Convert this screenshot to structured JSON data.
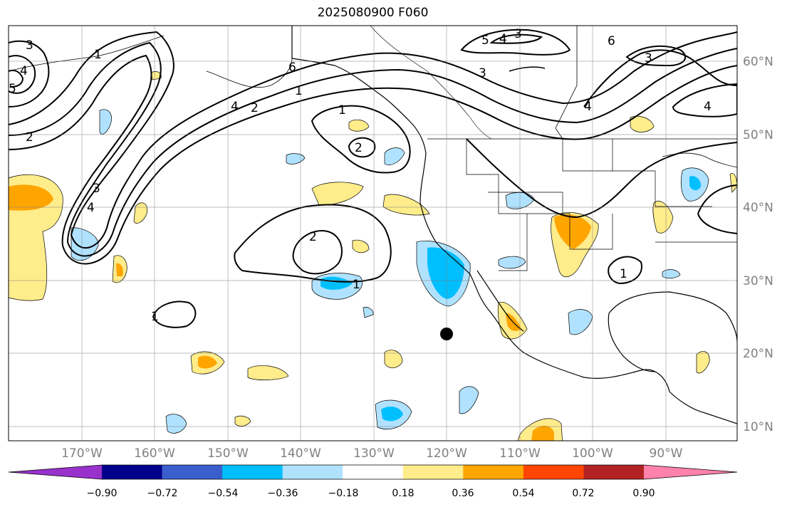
{
  "title": "2025080900 F060",
  "lon_ticks": [
    "170°W",
    "160°W",
    "150°W",
    "140°W",
    "130°W",
    "120°W",
    "110°W",
    "100°W",
    "90°W"
  ],
  "lat_ticks": [
    "10°N",
    "20°N",
    "30°N",
    "40°N",
    "50°N",
    "60°N"
  ],
  "colorbar": {
    "labels": [
      "−0.90",
      "−0.72",
      "−0.54",
      "−0.36",
      "−0.18",
      "0.18",
      "0.36",
      "0.54",
      "0.72",
      "0.90"
    ],
    "colors": [
      "#9932cc",
      "#00008b",
      "#3a5fcd",
      "#00bfff",
      "#b0e2ff",
      "#ffffff",
      "#ffec8b",
      "#ffa500",
      "#ff4500",
      "#b22222",
      "#ff82ab"
    ]
  },
  "contour_labels": [
    "1",
    "2",
    "3",
    "4",
    "5",
    "6"
  ],
  "marker": {
    "label": "point",
    "lon": -120,
    "lat": 22.5
  }
}
